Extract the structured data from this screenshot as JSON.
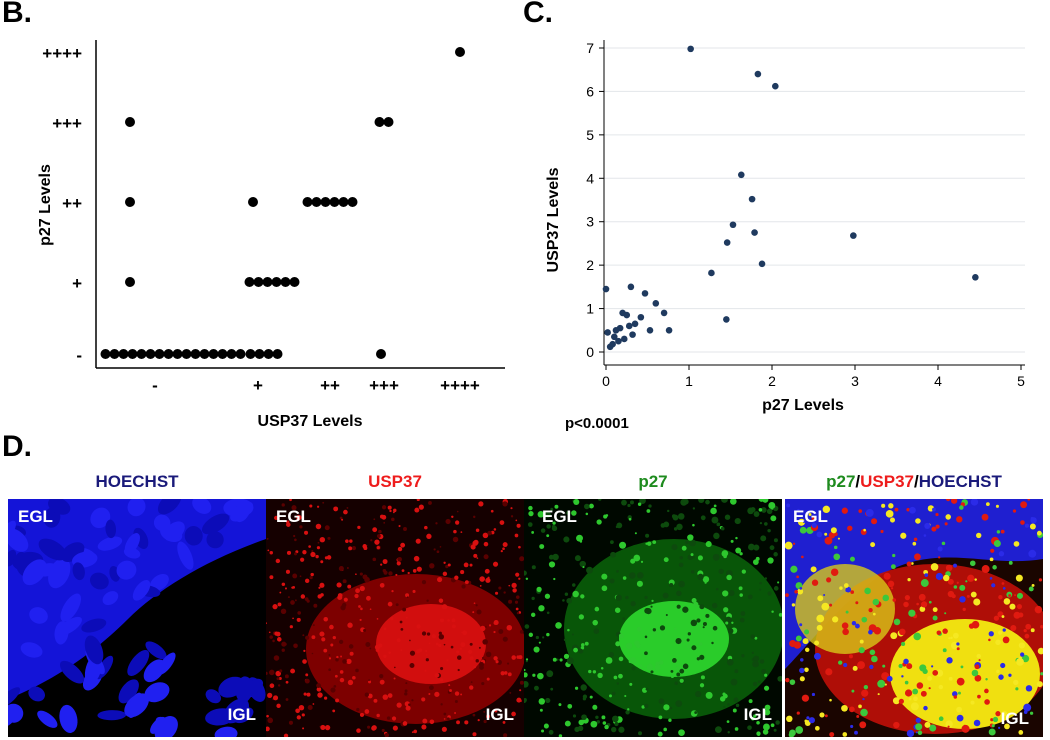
{
  "panels": {
    "b_label": "B.",
    "c_label": "C.",
    "d_label": "D."
  },
  "chart_data": [
    {
      "type": "scatter",
      "subtype": "dot-strip",
      "xlabel": "USP37 Levels",
      "ylabel": "p27 Levels",
      "x_ticks": [
        "-",
        "+",
        "++",
        "+++",
        "++++"
      ],
      "y_ticks": [
        "-",
        "+",
        "++",
        "+++",
        "++++"
      ],
      "points": [
        {
          "usp37": "-",
          "p27": "-",
          "count": 16
        },
        {
          "usp37": "-",
          "p27": "+",
          "count": 1
        },
        {
          "usp37": "-",
          "p27": "++",
          "count": 1
        },
        {
          "usp37": "-",
          "p27": "+++",
          "count": 1
        },
        {
          "usp37": "+",
          "p27": "-",
          "count": 4
        },
        {
          "usp37": "+",
          "p27": "+",
          "count": 6
        },
        {
          "usp37": "+",
          "p27": "++",
          "count": 1
        },
        {
          "usp37": "++",
          "p27": "++",
          "count": 6
        },
        {
          "usp37": "+++",
          "p27": "-",
          "count": 1
        },
        {
          "usp37": "+++",
          "p27": "+++",
          "count": 2
        },
        {
          "usp37": "++++",
          "p27": "++++",
          "count": 1
        }
      ]
    },
    {
      "type": "scatter",
      "xlabel": "p27 Levels",
      "ylabel": "USP37 Levels",
      "xlim": [
        0,
        5
      ],
      "ylim": [
        0,
        7
      ],
      "x_ticks": [
        "0",
        "1",
        "2",
        "3",
        "4",
        "5"
      ],
      "y_ticks": [
        "0",
        "1",
        "2",
        "3",
        "4",
        "5",
        "6",
        "7"
      ],
      "grid": "horizontal",
      "color": "#1f3a5f",
      "annotation": "p<0.0001",
      "x": [
        0.0,
        0.02,
        0.05,
        0.08,
        0.1,
        0.12,
        0.15,
        0.17,
        0.2,
        0.22,
        0.25,
        0.28,
        0.3,
        0.32,
        0.35,
        0.42,
        0.47,
        0.53,
        0.6,
        0.7,
        0.76,
        1.02,
        1.27,
        1.45,
        1.46,
        1.53,
        1.63,
        1.76,
        1.79,
        1.83,
        1.88,
        2.04,
        2.98,
        4.45
      ],
      "y": [
        1.45,
        0.45,
        0.12,
        0.18,
        0.35,
        0.5,
        0.25,
        0.55,
        0.9,
        0.3,
        0.85,
        0.6,
        1.5,
        0.4,
        0.65,
        0.8,
        1.35,
        0.5,
        1.12,
        0.9,
        0.5,
        6.98,
        1.82,
        0.75,
        2.52,
        2.93,
        4.08,
        3.52,
        2.75,
        6.4,
        2.03,
        6.12,
        2.68,
        1.72
      ]
    }
  ],
  "microscopy": [
    {
      "title": "HOECHST",
      "title_color": "#1a1a7a",
      "top_label": "EGL",
      "bottom_label": "IGL",
      "base": "#000000"
    },
    {
      "title": "USP37",
      "title_color": "#ee1c1c",
      "top_label": "EGL",
      "bottom_label": "IGL",
      "base": "#1a0000"
    },
    {
      "title": "p27",
      "title_color": "#1e8b1e",
      "top_label": "EGL",
      "bottom_label": "IGL",
      "base": "#001200"
    },
    {
      "title_parts": [
        {
          "text": "p27",
          "color": "#1e8b1e"
        },
        {
          "text": "/",
          "color": "#000000"
        },
        {
          "text": "USP37",
          "color": "#ee1c1c"
        },
        {
          "text": "/",
          "color": "#000000"
        },
        {
          "text": "HOECHST",
          "color": "#1a1a7a"
        }
      ],
      "top_label": "EGL",
      "bottom_label": "IGL",
      "base": "#200800"
    }
  ]
}
